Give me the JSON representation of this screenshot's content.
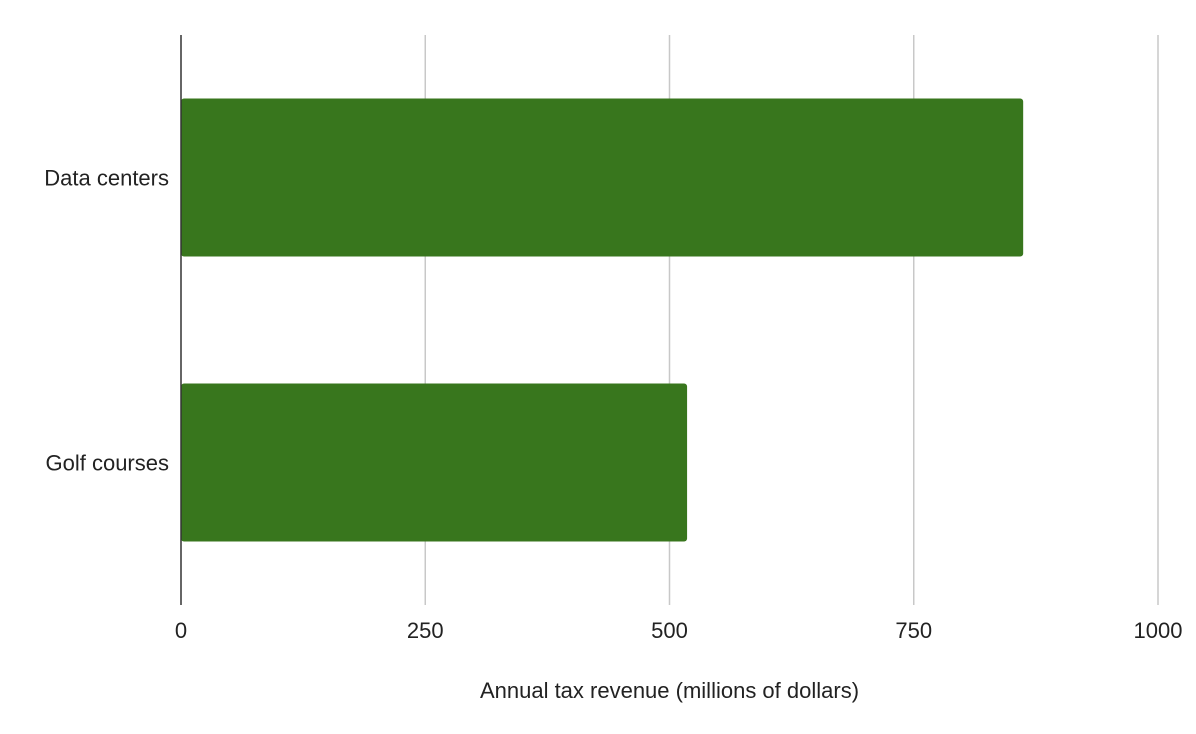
{
  "chart_data": {
    "type": "bar",
    "orientation": "horizontal",
    "categories": [
      "Data centers",
      "Golf courses"
    ],
    "values": [
      862,
      518
    ],
    "xlabel": "Annual tax revenue (millions of dollars)",
    "ylabel": "",
    "xlim": [
      0,
      1000
    ],
    "xticks": [
      0,
      250,
      500,
      750,
      1000
    ],
    "grid": true,
    "legend": "none",
    "bar_color": "#38761d"
  }
}
